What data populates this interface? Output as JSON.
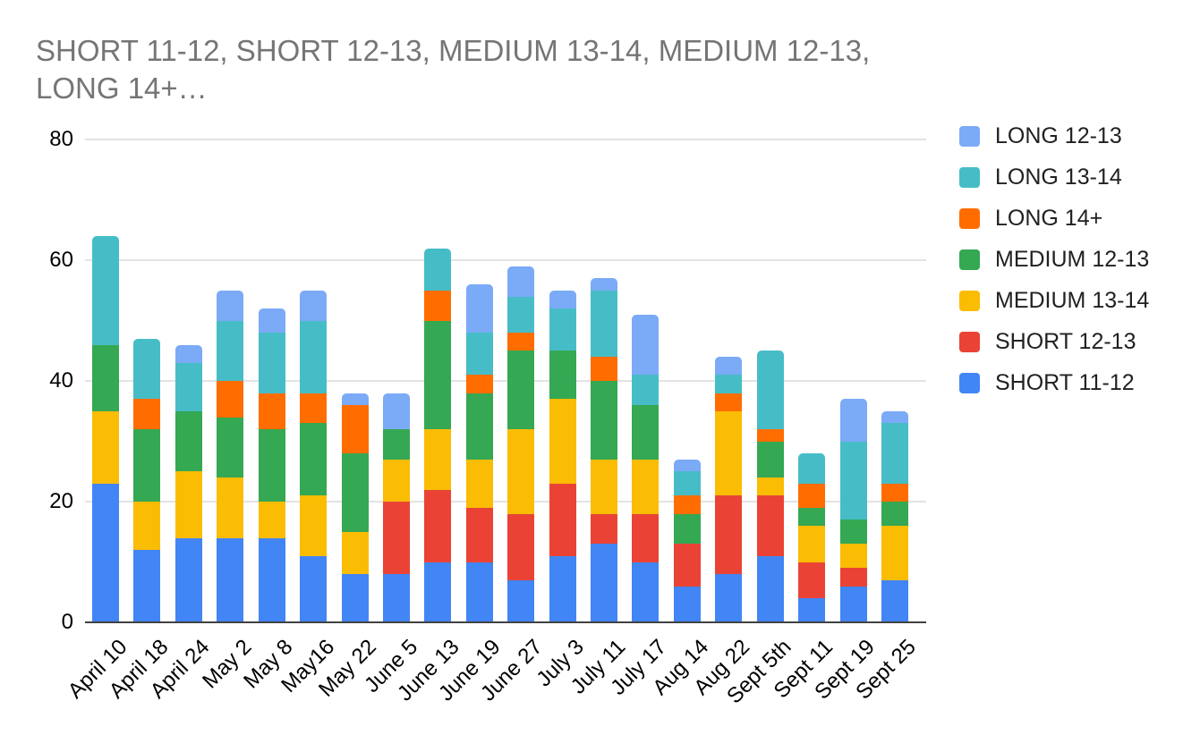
{
  "title": {
    "line1": "SHORT 11-12, SHORT 12-13, MEDIUM 13-14, MEDIUM 12-13,",
    "line2": "LONG 14+…"
  },
  "colors": {
    "background": "#ffffff",
    "title_text": "#757575",
    "tick_text": "#000000",
    "gridline": "#e3e3e3",
    "axis_line": "#424242"
  },
  "chart_data": {
    "type": "bar",
    "stacked": true,
    "title": "SHORT 11-12, SHORT 12-13, MEDIUM 13-14, MEDIUM 12-13, LONG 14+…",
    "xlabel": "",
    "ylabel": "",
    "ylim": [
      0,
      80
    ],
    "yticks": [
      0,
      20,
      40,
      60,
      80
    ],
    "grid": true,
    "legend_position": "right",
    "legend_order_top_to_bottom": [
      "LONG 12-13",
      "LONG 13-14",
      "LONG 14+",
      "MEDIUM 12-13",
      "MEDIUM 13-14",
      "SHORT 12-13",
      "SHORT 11-12"
    ],
    "categories": [
      "April 10",
      "April 18",
      "April 24",
      "May 2",
      "May 8",
      "May16",
      "May 22",
      "June 5",
      "June 13",
      "June 19",
      "June 27",
      "July 3",
      "July 11",
      "July 17",
      "Aug 14",
      "Aug 22",
      "Sept 5th",
      "Sept 11",
      "Sept 19",
      "Sept 25"
    ],
    "series": [
      {
        "name": "SHORT 11-12",
        "color": "#4285f4",
        "values": [
          23,
          12,
          14,
          14,
          14,
          11,
          8,
          8,
          10,
          10,
          7,
          11,
          13,
          10,
          6,
          8,
          11,
          4,
          6,
          7
        ]
      },
      {
        "name": "SHORT 12-13",
        "color": "#ea4335",
        "values": [
          0,
          0,
          0,
          0,
          0,
          0,
          0,
          12,
          12,
          9,
          11,
          12,
          5,
          8,
          7,
          13,
          10,
          6,
          3,
          0
        ]
      },
      {
        "name": "MEDIUM 13-14",
        "color": "#fbbc04",
        "values": [
          12,
          8,
          11,
          10,
          6,
          10,
          7,
          7,
          10,
          8,
          14,
          14,
          9,
          9,
          0,
          14,
          3,
          6,
          4,
          9
        ]
      },
      {
        "name": "MEDIUM 12-13",
        "color": "#34a853",
        "values": [
          11,
          12,
          10,
          10,
          12,
          12,
          13,
          5,
          18,
          11,
          13,
          8,
          13,
          9,
          5,
          0,
          6,
          3,
          4,
          4
        ]
      },
      {
        "name": "LONG 14+",
        "color": "#ff6d01",
        "values": [
          0,
          5,
          0,
          6,
          6,
          5,
          8,
          0,
          5,
          3,
          3,
          0,
          4,
          0,
          3,
          3,
          2,
          4,
          0,
          3
        ]
      },
      {
        "name": "LONG 13-14",
        "color": "#46bdc6",
        "values": [
          18,
          10,
          8,
          10,
          10,
          12,
          0,
          0,
          7,
          7,
          6,
          7,
          11,
          5,
          4,
          3,
          13,
          5,
          13,
          10
        ]
      },
      {
        "name": "LONG 12-13",
        "color": "#7baaf7",
        "values": [
          0,
          0,
          3,
          5,
          4,
          5,
          2,
          6,
          0,
          8,
          5,
          3,
          2,
          10,
          2,
          3,
          0,
          0,
          7,
          2
        ]
      }
    ],
    "totals": [
      64,
      47,
      46,
      55,
      52,
      55,
      38,
      38,
      62,
      56,
      59,
      55,
      57,
      51,
      27,
      44,
      45,
      28,
      37,
      35
    ]
  }
}
